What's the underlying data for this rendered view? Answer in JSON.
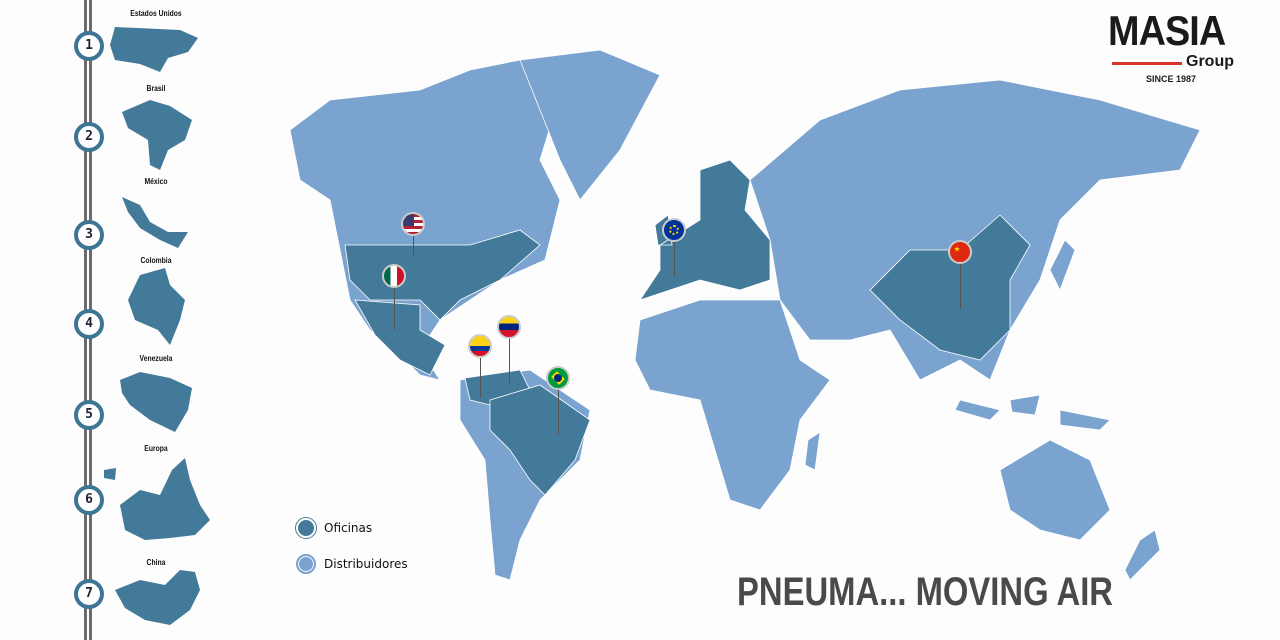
{
  "brand": {
    "name": "MASIA",
    "sub": "Group",
    "since": "SINCE 1987",
    "accent": "#d9322b"
  },
  "colors": {
    "oficinas": "#437a99",
    "distribuidores": "#7ba3cf"
  },
  "timeline": [
    {
      "num": "1",
      "label": "Estados Unidos"
    },
    {
      "num": "2",
      "label": "Brasil"
    },
    {
      "num": "3",
      "label": "México"
    },
    {
      "num": "4",
      "label": "Colombia"
    },
    {
      "num": "5",
      "label": "Venezuela"
    },
    {
      "num": "6",
      "label": "Europa"
    },
    {
      "num": "7",
      "label": "China"
    }
  ],
  "legend": {
    "oficinas": "Oficinas",
    "distribuidores": "Distribuidores"
  },
  "slogan": "PNEUMA... MOVING AIR",
  "pins": [
    "usa-flag",
    "mexico-flag",
    "venezuela-flag",
    "colombia-flag",
    "brazil-flag",
    "eu-flag",
    "china-flag"
  ]
}
